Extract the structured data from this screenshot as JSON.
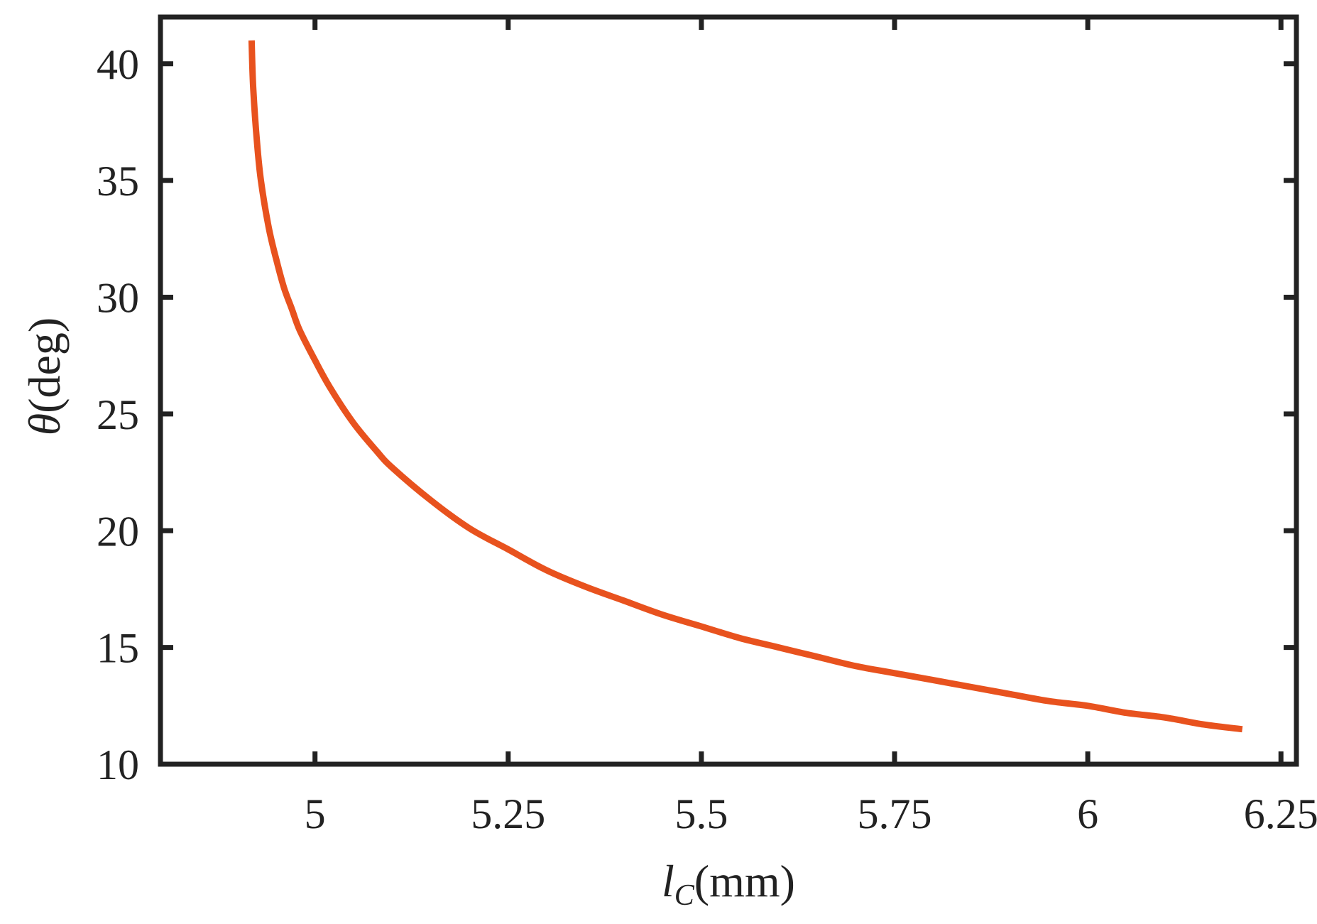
{
  "chart_data": {
    "type": "line",
    "xlabel": {
      "symbol": "l",
      "subscript": "C",
      "unit": "(mm)"
    },
    "ylabel": {
      "symbol": "θ",
      "unit": "(deg)"
    },
    "xlim": [
      4.8,
      6.27
    ],
    "ylim": [
      10,
      42
    ],
    "xticks": [
      5,
      5.25,
      5.5,
      5.75,
      6,
      6.25
    ],
    "xtick_labels": [
      "5",
      "5.25",
      "5.5",
      "5.75",
      "6",
      "6.25"
    ],
    "yticks": [
      10,
      15,
      20,
      25,
      30,
      35,
      40
    ],
    "ytick_labels": [
      "10",
      "15",
      "20",
      "25",
      "30",
      "35",
      "40"
    ],
    "grid": false,
    "series": [
      {
        "color": "#e8521e",
        "x": [
          4.918,
          4.92,
          4.925,
          4.93,
          4.94,
          4.95,
          4.96,
          4.97,
          4.98,
          5.0,
          5.02,
          5.05,
          5.08,
          5.1,
          5.15,
          5.2,
          5.25,
          5.3,
          5.35,
          5.4,
          5.45,
          5.5,
          5.55,
          5.6,
          5.65,
          5.7,
          5.75,
          5.8,
          5.85,
          5.9,
          5.95,
          6.0,
          6.05,
          6.1,
          6.15,
          6.2
        ],
        "y": [
          41.0,
          39.0,
          36.6,
          35.0,
          33.0,
          31.6,
          30.4,
          29.5,
          28.6,
          27.3,
          26.1,
          24.6,
          23.4,
          22.7,
          21.3,
          20.1,
          19.2,
          18.3,
          17.6,
          17.0,
          16.4,
          15.9,
          15.4,
          15.0,
          14.6,
          14.2,
          13.9,
          13.6,
          13.3,
          13.0,
          12.7,
          12.5,
          12.2,
          12.0,
          11.7,
          11.5
        ]
      }
    ]
  }
}
